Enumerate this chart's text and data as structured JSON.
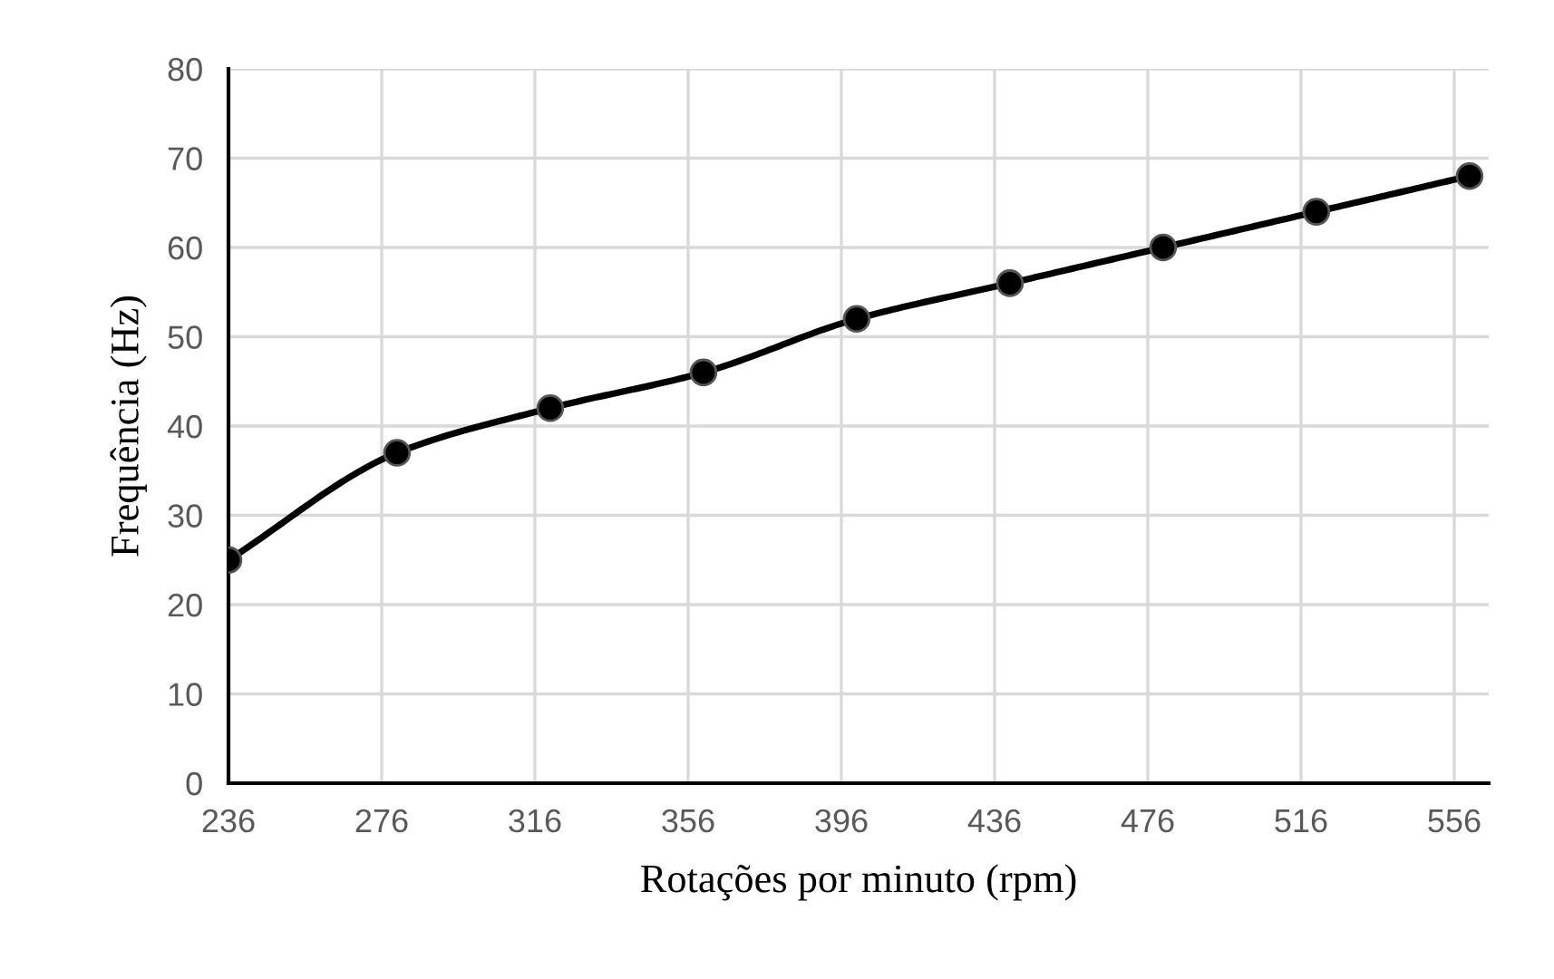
{
  "chart_data": {
    "type": "line",
    "xlabel": "Rotações por minuto (rpm)",
    "ylabel": "Frequência (Hz)",
    "x": [
      236,
      280,
      320,
      360,
      400,
      440,
      480,
      520,
      560
    ],
    "series": [
      {
        "color": "#000000",
        "values": [
          25,
          37,
          42,
          46,
          52,
          56,
          60,
          64,
          68
        ]
      }
    ],
    "xlim": [
      236,
      565
    ],
    "xticks": [
      236,
      276,
      316,
      356,
      396,
      436,
      476,
      516,
      556
    ],
    "ylim": [
      0,
      80
    ],
    "yticks": [
      0,
      10,
      20,
      30,
      40,
      50,
      60,
      70,
      80
    ],
    "grid": true,
    "marker": "circle",
    "line_style": "solid",
    "legend": false
  }
}
